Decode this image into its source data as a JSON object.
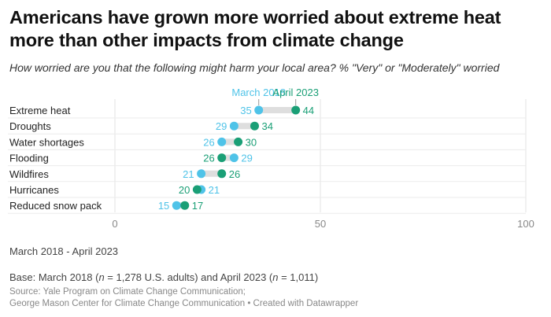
{
  "title": "Americans have grown more worried about extreme heat more than other impacts from climate change",
  "subtitle": "How worried are you that the following might harm your local area? % \"Very\" or \"Moderately\" worried",
  "chart_data": {
    "type": "dot",
    "categories": [
      "Extreme heat",
      "Droughts",
      "Water shortages",
      "Flooding",
      "Wildfires",
      "Hurricanes",
      "Reduced snow pack"
    ],
    "series": [
      {
        "name": "March 2018",
        "color": "#4fc3e8",
        "values": [
          35,
          29,
          26,
          29,
          21,
          21,
          15
        ]
      },
      {
        "name": "April 2023",
        "color": "#1a9f76",
        "values": [
          44,
          34,
          30,
          26,
          26,
          20,
          17
        ]
      }
    ],
    "xlim": [
      0,
      100
    ],
    "xticks": [
      0,
      50,
      100
    ],
    "legend": "top, labels at first row",
    "grid": true
  },
  "notes": {
    "period": "March 2018 - April 2023",
    "base": "Base: March 2018 (n = 1,278 U.S. adults) and April 2023 (n = 1,011)"
  },
  "source": {
    "line1": "Source: Yale Program on Climate Change Communication;",
    "line2": "George Mason Center for Climate Change Communication • Created with Datawrapper"
  }
}
